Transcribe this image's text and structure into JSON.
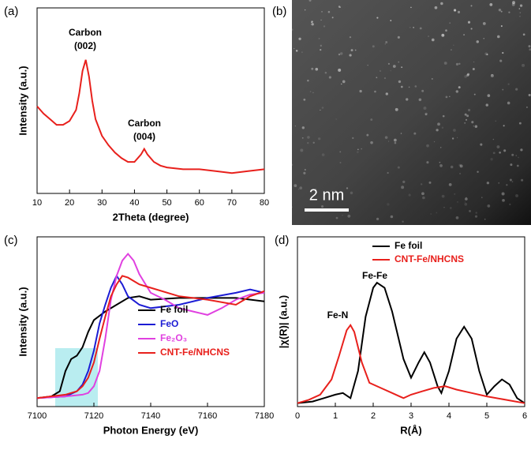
{
  "chart_data": [
    {
      "type": "line",
      "label": "(a)",
      "xlabel": "2Theta (degree)",
      "ylabel": "Intensity (a.u.)",
      "xlim": [
        10,
        80
      ],
      "xticks": [
        10,
        20,
        30,
        40,
        50,
        60,
        70,
        80
      ],
      "ylim": [
        0,
        100
      ],
      "annotations": [
        [
          "Carbon",
          "(002)"
        ],
        [
          "Carbon",
          "(004)"
        ]
      ],
      "x": [
        10,
        12,
        14,
        16,
        18,
        20,
        22,
        23,
        24,
        25,
        26,
        27,
        28,
        30,
        32,
        34,
        36,
        38,
        40,
        42,
        43,
        44,
        46,
        48,
        50,
        55,
        60,
        65,
        70,
        75,
        80
      ],
      "series": [
        {
          "color": "#e8201c",
          "values": [
            47,
            43,
            40,
            37,
            37,
            39,
            45,
            54,
            66,
            72,
            63,
            50,
            40,
            31,
            26,
            22,
            19,
            17,
            17,
            21,
            24,
            21,
            17,
            15,
            14,
            13,
            13,
            12,
            11,
            12,
            13
          ]
        }
      ]
    },
    {
      "type": "image",
      "label": "(b)",
      "scale_bar": "2 nm"
    },
    {
      "type": "line",
      "label": "(c)",
      "xlabel": "Photon Energy (eV)",
      "ylabel": "Intensity (a.u.)",
      "xlim": [
        7100,
        7180
      ],
      "xticks": [
        7100,
        7120,
        7140,
        7160,
        7180
      ],
      "ylim": [
        0,
        100
      ],
      "legend": "center right",
      "series": [
        {
          "name": "Fe foil",
          "color": "#000000",
          "x": [
            7100,
            7105,
            7108,
            7110,
            7112,
            7114,
            7116,
            7118,
            7120,
            7124,
            7128,
            7132,
            7136,
            7140,
            7150,
            7160,
            7170,
            7180
          ],
          "values": [
            5,
            6,
            9,
            21,
            28,
            30,
            35,
            44,
            51,
            56,
            60,
            64,
            65,
            63,
            64,
            64,
            64,
            62
          ]
        },
        {
          "name": "FeO",
          "color": "#1c1cd4",
          "x": [
            7100,
            7110,
            7114,
            7116,
            7118,
            7120,
            7122,
            7124,
            7126,
            7128,
            7130,
            7132,
            7136,
            7140,
            7150,
            7160,
            7170,
            7175,
            7180
          ],
          "values": [
            5,
            6,
            9,
            13,
            21,
            33,
            49,
            60,
            70,
            77,
            72,
            65,
            60,
            58,
            60,
            64,
            67,
            69,
            67
          ]
        },
        {
          "name": "Fe₂O₃",
          "color": "#e040e0",
          "x": [
            7100,
            7110,
            7116,
            7118,
            7120,
            7122,
            7124,
            7126,
            7128,
            7130,
            7132,
            7134,
            7136,
            7140,
            7145,
            7150,
            7155,
            7160,
            7165,
            7170,
            7175,
            7180
          ],
          "values": [
            5,
            6,
            7,
            8,
            12,
            21,
            40,
            63,
            77,
            86,
            90,
            86,
            78,
            67,
            63,
            58,
            56,
            54,
            58,
            63,
            66,
            67
          ]
        },
        {
          "name": "CNT-Fe/NHCNS",
          "color": "#e8201c",
          "x": [
            7100,
            7110,
            7114,
            7116,
            7118,
            7120,
            7122,
            7124,
            7126,
            7128,
            7130,
            7132,
            7136,
            7140,
            7150,
            7160,
            7170,
            7175,
            7180
          ],
          "values": [
            5,
            7,
            9,
            12,
            17,
            26,
            40,
            53,
            65,
            72,
            77,
            76,
            72,
            70,
            65,
            63,
            60,
            65,
            68
          ]
        }
      ]
    },
    {
      "type": "line",
      "label": "(d)",
      "xlabel": "R(Å)",
      "ylabel": "|χ(R)| (a.u.)",
      "xlim": [
        0,
        6
      ],
      "xticks": [
        0,
        1,
        2,
        3,
        4,
        5,
        6
      ],
      "ylim": [
        0,
        100
      ],
      "legend": "upper left",
      "annotations": [
        [
          "Fe-Fe"
        ],
        [
          "Fe-N"
        ]
      ],
      "series": [
        {
          "name": "Fe foil",
          "color": "#000000",
          "x": [
            0,
            0.4,
            0.7,
            1.0,
            1.2,
            1.4,
            1.6,
            1.8,
            2.0,
            2.1,
            2.3,
            2.5,
            2.8,
            3.0,
            3.2,
            3.35,
            3.5,
            3.7,
            3.8,
            4.0,
            4.2,
            4.4,
            4.6,
            4.8,
            5.0,
            5.2,
            5.4,
            5.6,
            5.8,
            6.0
          ],
          "values": [
            2,
            3,
            5,
            7,
            8,
            5,
            21,
            53,
            70,
            73,
            70,
            56,
            28,
            17,
            26,
            32,
            26,
            12,
            8,
            21,
            40,
            47,
            40,
            21,
            7,
            12,
            16,
            13,
            5,
            2
          ]
        },
        {
          "name": "CNT-Fe/NHCNS",
          "color": "#e8201c",
          "x": [
            0,
            0.3,
            0.6,
            0.9,
            1.1,
            1.3,
            1.4,
            1.5,
            1.7,
            1.9,
            2.2,
            2.5,
            2.8,
            3.0,
            3.3,
            3.6,
            3.9,
            4.2,
            4.6,
            5.0,
            5.5,
            6.0
          ],
          "values": [
            2,
            4,
            7,
            16,
            30,
            45,
            48,
            44,
            26,
            14,
            11,
            8,
            5,
            7,
            9,
            11,
            12,
            10,
            8,
            6,
            4,
            2
          ]
        }
      ]
    }
  ]
}
